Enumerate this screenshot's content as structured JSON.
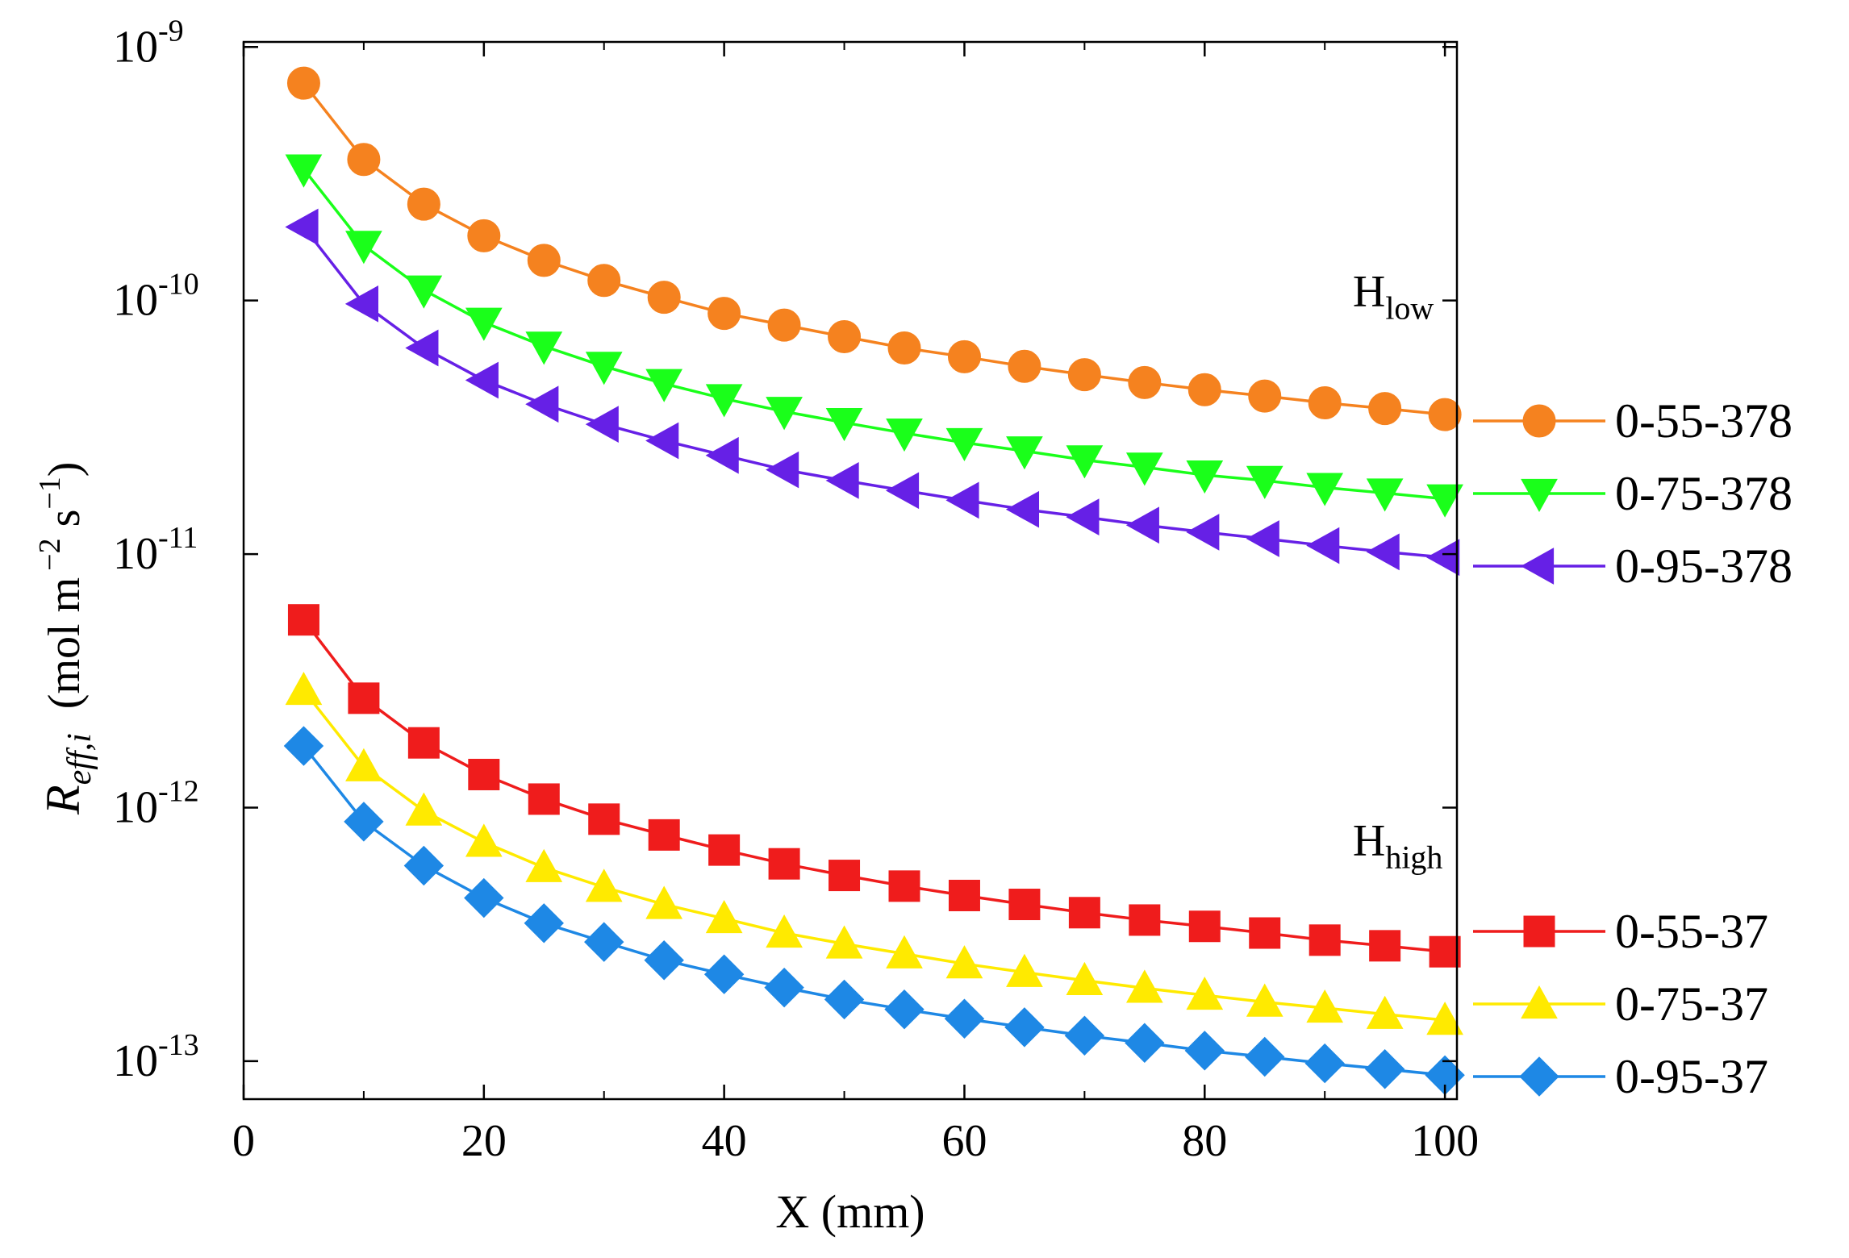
{
  "chart_data": {
    "type": "line",
    "title": "",
    "xlabel": "X  (mm)",
    "ylabel": {
      "symbol": "R",
      "subscript": "eff,i",
      "units_open": "(mol m",
      "exp1": "−2",
      "units_mid": " s",
      "exp2": "−1",
      "units_close": ")"
    },
    "xlim": [
      0,
      101
    ],
    "ylim_log10": [
      -13.15,
      -8.98
    ],
    "yscale": "log",
    "x_ticks": [
      0,
      20,
      40,
      60,
      80,
      100
    ],
    "y_ticks": [
      {
        "base": "10",
        "exp": "-9",
        "value": -9
      },
      {
        "base": "10",
        "exp": "-10",
        "value": -10
      },
      {
        "base": "10",
        "exp": "-11",
        "value": -11
      },
      {
        "base": "10",
        "exp": "-12",
        "value": -12
      },
      {
        "base": "10",
        "exp": "-13",
        "value": -13
      }
    ],
    "annotations": [
      {
        "base": "H",
        "sub": "low",
        "x": 93,
        "y": 9.5e-11
      },
      {
        "base": "H",
        "sub": "high",
        "x": 93,
        "y": 6.5e-13
      }
    ],
    "x": [
      5,
      10,
      15,
      20,
      25,
      30,
      35,
      40,
      45,
      50,
      55,
      60,
      65,
      70,
      75,
      80,
      85,
      90,
      95,
      100
    ],
    "series": [
      {
        "name": "0-55-378",
        "marker": "circle",
        "color": "#f5821f",
        "values": [
          7.2e-10,
          3.6e-10,
          2.4e-10,
          1.8e-10,
          1.44e-10,
          1.2e-10,
          1.03e-10,
          8.9e-11,
          8e-11,
          7.2e-11,
          6.5e-11,
          6e-11,
          5.5e-11,
          5.1e-11,
          4.75e-11,
          4.45e-11,
          4.2e-11,
          3.95e-11,
          3.75e-11,
          3.55e-11
        ]
      },
      {
        "name": "0-75-378",
        "marker": "triangle-down",
        "color": "#1aff1a",
        "values": [
          3.3e-10,
          1.65e-10,
          1.1e-10,
          8.2e-11,
          6.6e-11,
          5.5e-11,
          4.7e-11,
          4.1e-11,
          3.65e-11,
          3.3e-11,
          3e-11,
          2.75e-11,
          2.55e-11,
          2.35e-11,
          2.2e-11,
          2.05e-11,
          1.95e-11,
          1.83e-11,
          1.74e-11,
          1.65e-11
        ]
      },
      {
        "name": "0-95-378",
        "marker": "triangle-left",
        "color": "#6620e6",
        "values": [
          1.95e-10,
          9.7e-11,
          6.5e-11,
          4.85e-11,
          3.9e-11,
          3.25e-11,
          2.8e-11,
          2.45e-11,
          2.15e-11,
          1.95e-11,
          1.78e-11,
          1.63e-11,
          1.5e-11,
          1.4e-11,
          1.3e-11,
          1.22e-11,
          1.15e-11,
          1.08e-11,
          1.02e-11,
          9.7e-12
        ]
      },
      {
        "name": "0-55-37",
        "marker": "square",
        "color": "#ef1c1c",
        "values": [
          5.5e-12,
          2.7e-12,
          1.8e-12,
          1.35e-12,
          1.08e-12,
          9e-13,
          7.8e-13,
          6.8e-13,
          6e-13,
          5.4e-13,
          4.9e-13,
          4.5e-13,
          4.15e-13,
          3.85e-13,
          3.6e-13,
          3.4e-13,
          3.2e-13,
          3e-13,
          2.85e-13,
          2.7e-13
        ]
      },
      {
        "name": "0-75-37",
        "marker": "triangle-up",
        "color": "#ffea00",
        "values": [
          2.9e-12,
          1.45e-12,
          9.7e-13,
          7.3e-13,
          5.8e-13,
          4.85e-13,
          4.15e-13,
          3.65e-13,
          3.2e-13,
          2.9e-13,
          2.65e-13,
          2.42e-13,
          2.24e-13,
          2.08e-13,
          1.94e-13,
          1.82e-13,
          1.71e-13,
          1.62e-13,
          1.53e-13,
          1.45e-13
        ]
      },
      {
        "name": "0-95-37",
        "marker": "diamond",
        "color": "#1e88e5",
        "values": [
          1.75e-12,
          8.8e-13,
          5.9e-13,
          4.4e-13,
          3.5e-13,
          2.95e-13,
          2.5e-13,
          2.2e-13,
          1.95e-13,
          1.75e-13,
          1.6e-13,
          1.47e-13,
          1.36e-13,
          1.26e-13,
          1.18e-13,
          1.1e-13,
          1.04e-13,
          9.8e-14,
          9.3e-14,
          8.8e-14
        ]
      }
    ]
  }
}
